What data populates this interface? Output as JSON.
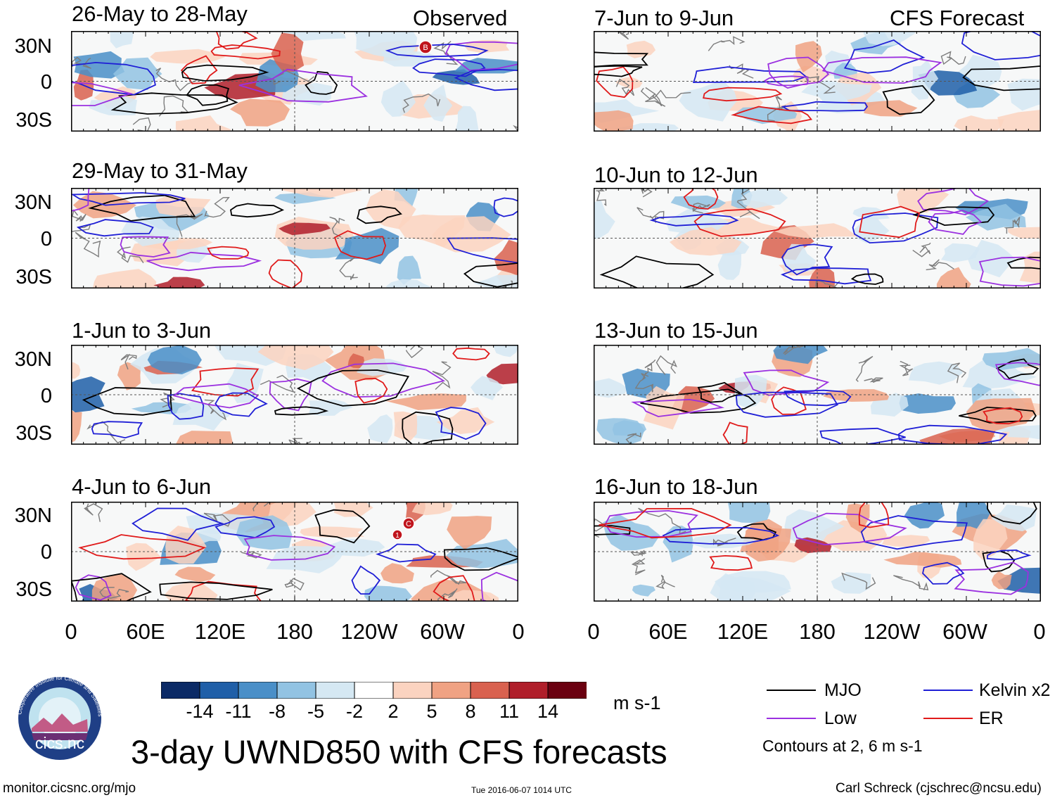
{
  "header": {
    "observed_label": "Observed",
    "forecast_label": "CFS Forecast"
  },
  "panels": {
    "observed": [
      {
        "title": "26-May to 28-May"
      },
      {
        "title": "29-May to 31-May"
      },
      {
        "title": "1-Jun to 3-Jun"
      },
      {
        "title": "4-Jun to 6-Jun"
      }
    ],
    "forecast": [
      {
        "title": "7-Jun to 9-Jun"
      },
      {
        "title": "10-Jun to 12-Jun"
      },
      {
        "title": "13-Jun to 15-Jun"
      },
      {
        "title": "16-Jun to 18-Jun"
      }
    ]
  },
  "axes": {
    "y_ticks": [
      "30N",
      "0",
      "30S"
    ],
    "x_ticks": [
      "0",
      "60E",
      "120E",
      "180",
      "120W",
      "60W",
      "0"
    ]
  },
  "markers": {
    "panel1_marker": "B",
    "panel4_marker_a": "C",
    "panel4_marker_b": "1"
  },
  "colorbar": {
    "colors": [
      "#0b2a66",
      "#1f5fa8",
      "#4a8fc8",
      "#92c3e3",
      "#d5e8f3",
      "#ffffff",
      "#fbd3c0",
      "#f0a283",
      "#d9614f",
      "#b01e2a",
      "#6b0010"
    ],
    "labels": [
      "-14",
      "-11",
      "-8",
      "-5",
      "-2",
      "2",
      "5",
      "8",
      "11",
      "14"
    ],
    "units": "m s-1"
  },
  "legend": {
    "items": [
      {
        "label": "MJO",
        "color": "#000000"
      },
      {
        "label": "Kelvin x2",
        "color": "#1f1fd6"
      },
      {
        "label": "Low",
        "color": "#9b30e0"
      },
      {
        "label": "ER",
        "color": "#e01a1a"
      }
    ],
    "note": "Contours at 2, 6 m s-1"
  },
  "logo": {
    "text": "cics.nc",
    "ring_text": "Cooperative Institute for Climate and Satellites"
  },
  "title": "3-day UWND850 with CFS forecasts",
  "footer": {
    "url": "monitor.cicsnc.org/mjo",
    "timestamp": "Tue 2016-06-07 1014 UTC",
    "author": "Carl Schreck (cjschrec@ncsu.edu)"
  }
}
